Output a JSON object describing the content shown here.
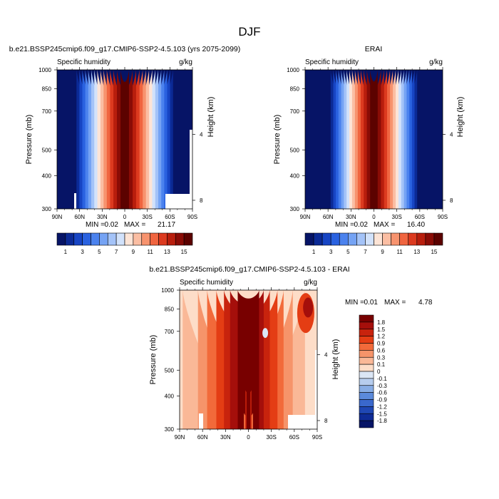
{
  "figure": {
    "title": "DJF"
  },
  "chart_data": [
    {
      "type": "heatmap",
      "title": "b.e21.BSSP245cmip6.f09_g17.CMIP6-SSP2-4.5.103 (yrs 2075-2099)",
      "subtitle_left": "Specific humidity",
      "units": "g/kg",
      "xlabel": "",
      "ylabel": "Pressure (mb)",
      "y2label": "Height (km)",
      "x_ticks": [
        "90N",
        "60N",
        "30N",
        "0",
        "30S",
        "60S",
        "90S"
      ],
      "x_values": [
        90,
        60,
        30,
        0,
        -30,
        -60,
        -90
      ],
      "y_ticks": [
        "300",
        "400",
        "500",
        "700",
        "850",
        "1000"
      ],
      "y_values": [
        300,
        400,
        500,
        700,
        850,
        1000
      ],
      "y2_ticks": [
        "8",
        "4"
      ],
      "y2_values": [
        8,
        4
      ],
      "ylim": [
        1000,
        300
      ],
      "scale": "log-pressure",
      "min_label": "MIN =",
      "min_value": "0.02",
      "max_label": "MAX =",
      "max_value": "21.17",
      "peak_lat": 0,
      "peak_value": 21.17,
      "label_bar_ticks": [
        "1",
        "3",
        "5",
        "7",
        "9",
        "11",
        "13",
        "15"
      ],
      "contour_levels": [
        1,
        2,
        3,
        4,
        5,
        6,
        7,
        8,
        9,
        10,
        11,
        12,
        13,
        14,
        15
      ]
    },
    {
      "type": "heatmap",
      "title": "ERAI",
      "subtitle_left": "Specific humidity",
      "units": "g/kg",
      "xlabel": "",
      "ylabel": "Pressure (mb)",
      "y2label": "Height (km)",
      "x_ticks": [
        "90N",
        "60N",
        "30N",
        "0",
        "30S",
        "60S",
        "90S"
      ],
      "x_values": [
        90,
        60,
        30,
        0,
        -30,
        -60,
        -90
      ],
      "y_ticks": [
        "300",
        "400",
        "500",
        "700",
        "850",
        "1000"
      ],
      "y_values": [
        300,
        400,
        500,
        700,
        850,
        1000
      ],
      "y2_ticks": [
        "8",
        "4"
      ],
      "y2_values": [
        8,
        4
      ],
      "ylim": [
        1000,
        300
      ],
      "scale": "log-pressure",
      "min_label": "MIN =",
      "min_value": "0.02",
      "max_label": "MAX =",
      "max_value": "16.40",
      "peak_lat": 0,
      "peak_value": 16.4,
      "label_bar_ticks": [
        "1",
        "3",
        "5",
        "7",
        "9",
        "11",
        "13",
        "15"
      ],
      "contour_levels": [
        1,
        2,
        3,
        4,
        5,
        6,
        7,
        8,
        9,
        10,
        11,
        12,
        13,
        14,
        15
      ]
    },
    {
      "type": "heatmap",
      "title": "b.e21.BSSP245cmip6.f09_g17.CMIP6-SSP2-4.5.103 - ERAI",
      "subtitle_left": "Specific humidity",
      "units": "g/kg",
      "xlabel": "",
      "ylabel": "Pressure (mb)",
      "y2label": "Height (km)",
      "x_ticks": [
        "90N",
        "60N",
        "30N",
        "0",
        "30S",
        "60S",
        "90S"
      ],
      "x_values": [
        90,
        60,
        30,
        0,
        -30,
        -60,
        -90
      ],
      "y_ticks": [
        "300",
        "400",
        "500",
        "700",
        "850",
        "1000"
      ],
      "y_values": [
        300,
        400,
        500,
        700,
        850,
        1000
      ],
      "y2_ticks": [
        "8",
        "4"
      ],
      "y2_values": [
        8,
        4
      ],
      "ylim": [
        1000,
        300
      ],
      "scale": "log-pressure",
      "min_label": "MIN =",
      "min_value": "0.01",
      "max_label": "MAX =",
      "max_value": "4.78",
      "label_bar_ticks": [
        "1.8",
        "1.5",
        "1.2",
        "0.9",
        "0.6",
        "0.3",
        "0.1",
        "0",
        "-0.1",
        "-0.3",
        "-0.6",
        "-0.9",
        "-1.2",
        "-1.5",
        "-1.8"
      ],
      "contour_levels": [
        1.8,
        1.5,
        1.2,
        0.9,
        0.6,
        0.3,
        0.1,
        0,
        -0.1,
        -0.3,
        -0.6,
        -0.9,
        -1.2,
        -1.5,
        -1.8
      ]
    }
  ],
  "colors": {
    "abs_scale": [
      "#061466",
      "#0b2a96",
      "#1745c4",
      "#2a62e0",
      "#4b82ee",
      "#75a3f4",
      "#a4c3f8",
      "#d2e2fb",
      "#fde4d6",
      "#fbbea3",
      "#f7936e",
      "#f06540",
      "#dc3a1f",
      "#b81e0d",
      "#8a0c06",
      "#5c0200"
    ],
    "diff_scale": [
      "#780000",
      "#a50f0b",
      "#c8230d",
      "#e43d14",
      "#f26a3a",
      "#f6946a",
      "#fab897",
      "#fdddc8",
      "#dbe6f5",
      "#b7cdee",
      "#88ade5",
      "#5b8adb",
      "#3a68cc",
      "#1f47b4",
      "#0e2b96",
      "#061466"
    ]
  }
}
